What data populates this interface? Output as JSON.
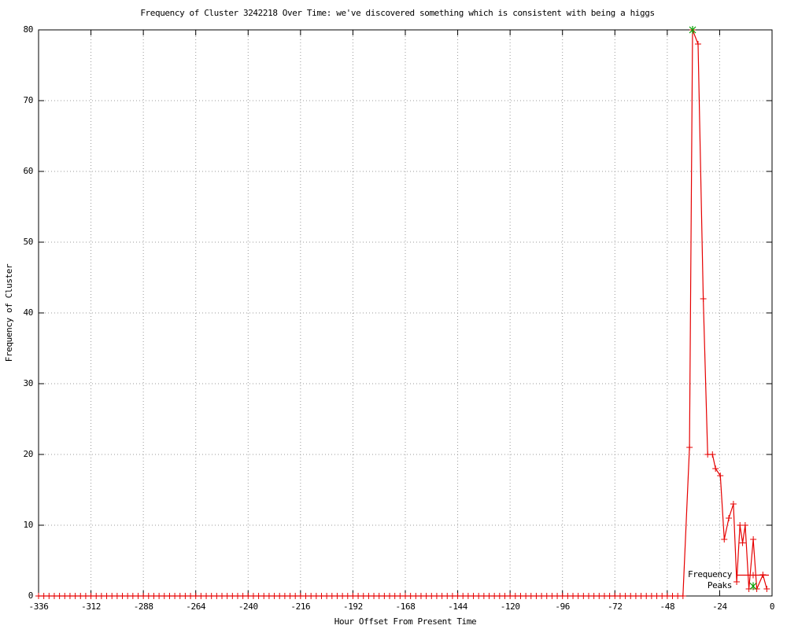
{
  "chart_data": {
    "type": "line",
    "title": "Frequency of Cluster 3242218 Over Time: we've discovered something which is consistent with being a higgs",
    "xlabel": "Hour Offset From Present Time",
    "ylabel": "Frequency of Cluster",
    "xlim": [
      -336,
      0
    ],
    "ylim": [
      0,
      80
    ],
    "xticks": [
      -336,
      -312,
      -288,
      -264,
      -240,
      -216,
      -192,
      -168,
      -144,
      -120,
      -96,
      -72,
      -48,
      -24,
      0
    ],
    "yticks": [
      0,
      10,
      20,
      30,
      40,
      50,
      60,
      70,
      80
    ],
    "grid": "dotted",
    "colors": {
      "frequency_line": "#e60000",
      "peaks_marker": "#00a000",
      "grid": "#999999",
      "axis": "#000000",
      "background": "#ffffff"
    },
    "legend": {
      "position": "inside-bottom-right",
      "entries": [
        "Frequency",
        "Peaks"
      ]
    },
    "series": [
      {
        "name": "Frequency",
        "color": "#e60000",
        "marker": "plus",
        "style": "linespoints",
        "zero_run": {
          "from": -336,
          "to": -40.8,
          "step": 2.4,
          "value": 0
        },
        "points": [
          [
            -37.8,
            21
          ],
          [
            -36.4,
            80
          ],
          [
            -33.9,
            78
          ],
          [
            -31.5,
            42
          ],
          [
            -29.5,
            20
          ],
          [
            -27.3,
            20
          ],
          [
            -25.9,
            18
          ],
          [
            -23.7,
            17
          ],
          [
            -21.9,
            8
          ],
          [
            -19.8,
            11
          ],
          [
            -17.7,
            13
          ],
          [
            -16.2,
            2
          ],
          [
            -14.7,
            10
          ],
          [
            -13.5,
            7.5
          ],
          [
            -12.3,
            10
          ],
          [
            -10.6,
            1
          ],
          [
            -8.6,
            8
          ],
          [
            -7.0,
            1
          ],
          [
            -4.2,
            3
          ],
          [
            -2.4,
            1
          ]
        ]
      },
      {
        "name": "Peaks",
        "color": "#00a000",
        "marker": "asterisk",
        "style": "points",
        "points": [
          [
            -36.4,
            80
          ]
        ]
      }
    ]
  }
}
